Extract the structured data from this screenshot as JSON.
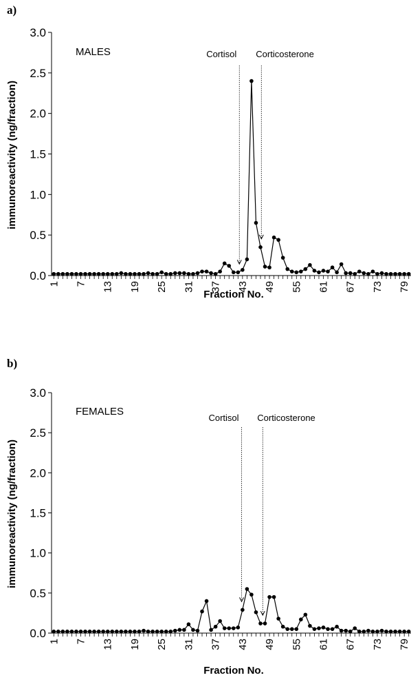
{
  "chart_data": [
    {
      "type": "line",
      "panel_label": "a)",
      "inset_label": "MALES",
      "xlabel": "Fraction No.",
      "ylabel": "immunoreactivity (ng/fraction)",
      "ylim": [
        0,
        3.0
      ],
      "xlim": [
        1,
        80
      ],
      "yticks": [
        "0.0",
        "0.5",
        "1.0",
        "1.5",
        "2.0",
        "2.5",
        "3.0"
      ],
      "xticks": [
        1,
        7,
        13,
        19,
        25,
        31,
        37,
        43,
        49,
        55,
        61,
        67,
        73,
        79
      ],
      "grid": false,
      "markers": [
        {
          "label": "Cortisol",
          "x": 42.3
        },
        {
          "label": "Corticosterone",
          "x": 47.2
        }
      ],
      "x": [
        1,
        2,
        3,
        4,
        5,
        6,
        7,
        8,
        9,
        10,
        11,
        12,
        13,
        14,
        15,
        16,
        17,
        18,
        19,
        20,
        21,
        22,
        23,
        24,
        25,
        26,
        27,
        28,
        29,
        30,
        31,
        32,
        33,
        34,
        35,
        36,
        37,
        38,
        39,
        40,
        41,
        42,
        43,
        44,
        45,
        46,
        47,
        48,
        49,
        50,
        51,
        52,
        53,
        54,
        55,
        56,
        57,
        58,
        59,
        60,
        61,
        62,
        63,
        64,
        65,
        66,
        67,
        68,
        69,
        70,
        71,
        72,
        73,
        74,
        75,
        76,
        77,
        78,
        79,
        80
      ],
      "values": [
        0.02,
        0.02,
        0.02,
        0.02,
        0.02,
        0.02,
        0.02,
        0.02,
        0.02,
        0.02,
        0.02,
        0.02,
        0.02,
        0.02,
        0.02,
        0.03,
        0.02,
        0.02,
        0.02,
        0.02,
        0.02,
        0.03,
        0.02,
        0.02,
        0.04,
        0.02,
        0.02,
        0.03,
        0.03,
        0.03,
        0.02,
        0.02,
        0.03,
        0.05,
        0.05,
        0.03,
        0.02,
        0.05,
        0.15,
        0.12,
        0.04,
        0.04,
        0.07,
        0.2,
        2.4,
        0.65,
        0.35,
        0.11,
        0.1,
        0.47,
        0.44,
        0.22,
        0.08,
        0.05,
        0.04,
        0.05,
        0.08,
        0.13,
        0.06,
        0.04,
        0.06,
        0.05,
        0.1,
        0.04,
        0.14,
        0.03,
        0.03,
        0.02,
        0.05,
        0.03,
        0.02,
        0.05,
        0.02,
        0.03,
        0.02,
        0.02,
        0.02,
        0.02,
        0.02,
        0.02
      ]
    },
    {
      "type": "line",
      "panel_label": "b)",
      "inset_label": "FEMALES",
      "xlabel": "Fraction No.",
      "ylabel": "immunoreactivity (ng/fraction)",
      "ylim": [
        0,
        3.0
      ],
      "xlim": [
        1,
        80
      ],
      "yticks": [
        "0.0",
        "0.5",
        "1.0",
        "1.5",
        "2.0",
        "2.5",
        "3.0"
      ],
      "xticks": [
        1,
        7,
        13,
        19,
        25,
        31,
        37,
        43,
        49,
        55,
        61,
        67,
        73,
        79
      ],
      "grid": false,
      "markers": [
        {
          "label": "Cortisol",
          "x": 42.8
        },
        {
          "label": "Corticosterone",
          "x": 47.5
        }
      ],
      "x": [
        1,
        2,
        3,
        4,
        5,
        6,
        7,
        8,
        9,
        10,
        11,
        12,
        13,
        14,
        15,
        16,
        17,
        18,
        19,
        20,
        21,
        22,
        23,
        24,
        25,
        26,
        27,
        28,
        29,
        30,
        31,
        32,
        33,
        34,
        35,
        36,
        37,
        38,
        39,
        40,
        41,
        42,
        43,
        44,
        45,
        46,
        47,
        48,
        49,
        50,
        51,
        52,
        53,
        54,
        55,
        56,
        57,
        58,
        59,
        60,
        61,
        62,
        63,
        64,
        65,
        66,
        67,
        68,
        69,
        70,
        71,
        72,
        73,
        74,
        75,
        76,
        77,
        78,
        79,
        80
      ],
      "values": [
        0.02,
        0.02,
        0.02,
        0.02,
        0.02,
        0.02,
        0.02,
        0.02,
        0.02,
        0.02,
        0.02,
        0.02,
        0.02,
        0.02,
        0.02,
        0.02,
        0.02,
        0.02,
        0.02,
        0.02,
        0.03,
        0.02,
        0.02,
        0.02,
        0.02,
        0.02,
        0.02,
        0.03,
        0.04,
        0.04,
        0.11,
        0.04,
        0.03,
        0.27,
        0.4,
        0.04,
        0.08,
        0.15,
        0.06,
        0.06,
        0.06,
        0.07,
        0.29,
        0.55,
        0.48,
        0.26,
        0.12,
        0.12,
        0.45,
        0.45,
        0.18,
        0.08,
        0.05,
        0.05,
        0.05,
        0.17,
        0.23,
        0.09,
        0.05,
        0.06,
        0.07,
        0.05,
        0.05,
        0.08,
        0.03,
        0.03,
        0.02,
        0.06,
        0.02,
        0.02,
        0.03,
        0.02,
        0.02,
        0.03,
        0.02,
        0.02,
        0.02,
        0.02,
        0.02,
        0.02
      ]
    }
  ]
}
